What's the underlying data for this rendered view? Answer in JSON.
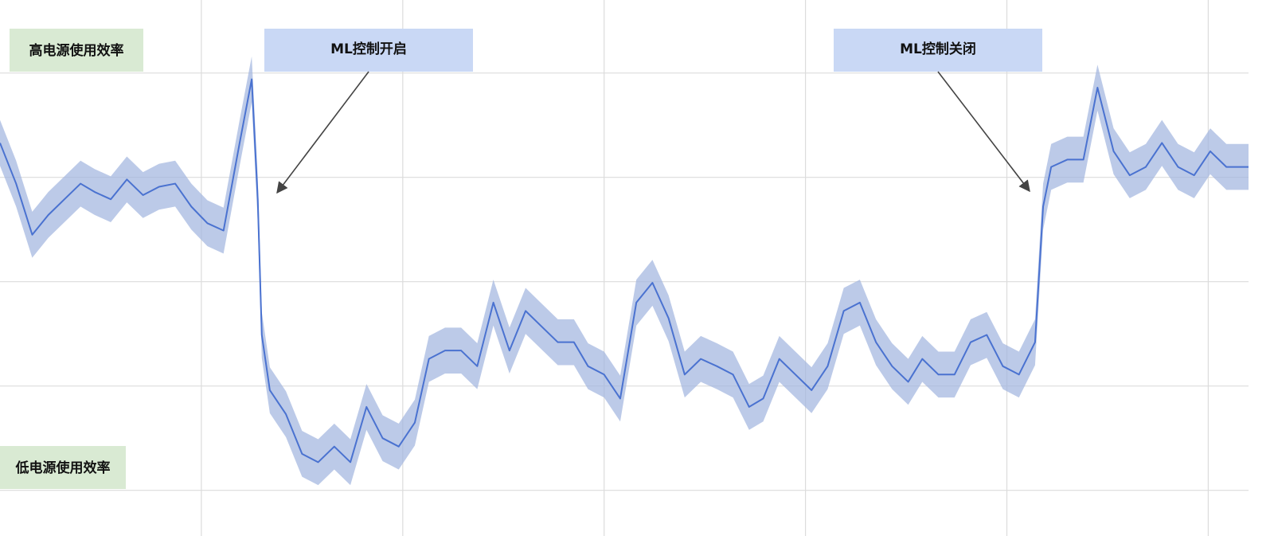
{
  "chart_data": {
    "type": "line",
    "annotations": [
      "ML控制开启",
      "ML控制关闭"
    ],
    "labels": {
      "high": "高电源使用效率",
      "low": "低电源使用效率"
    },
    "x": [
      0,
      0.08,
      0.16,
      0.24,
      0.32,
      0.4,
      0.47,
      0.55,
      0.63,
      0.71,
      0.79,
      0.87,
      0.95,
      1.03,
      1.11,
      1.19,
      1.25,
      1.28,
      1.3,
      1.34,
      1.42,
      1.5,
      1.58,
      1.66,
      1.74,
      1.82,
      1.9,
      1.98,
      2.06,
      2.13,
      2.21,
      2.29,
      2.37,
      2.45,
      2.53,
      2.61,
      2.69,
      2.77,
      2.85,
      2.92,
      3.0,
      3.08,
      3.16,
      3.24,
      3.32,
      3.4,
      3.48,
      3.56,
      3.64,
      3.72,
      3.79,
      3.87,
      3.95,
      4.03,
      4.11,
      4.19,
      4.27,
      4.35,
      4.43,
      4.51,
      4.58,
      4.66,
      4.74,
      4.82,
      4.9,
      4.98,
      5.06,
      5.14,
      5.18,
      5.22,
      5.3,
      5.38,
      5.45,
      5.53,
      5.61,
      5.69,
      5.77,
      5.85,
      5.93,
      6.01,
      6.09,
      6.2
    ],
    "series": [
      {
        "color": "#4a72d0",
        "band_color": "#9fb3de",
        "error": 0.22,
        "values": [
          3.33,
          2.94,
          2.45,
          2.64,
          2.79,
          2.94,
          2.86,
          2.79,
          2.98,
          2.83,
          2.91,
          2.94,
          2.72,
          2.56,
          2.49,
          3.33,
          3.94,
          2.79,
          1.49,
          0.96,
          0.73,
          0.35,
          0.27,
          0.42,
          0.27,
          0.8,
          0.5,
          0.42,
          0.65,
          1.26,
          1.34,
          1.34,
          1.19,
          1.8,
          1.34,
          1.72,
          1.57,
          1.42,
          1.42,
          1.19,
          1.11,
          0.88,
          1.8,
          1.99,
          1.65,
          1.11,
          1.26,
          1.19,
          1.11,
          0.8,
          0.88,
          1.26,
          1.11,
          0.96,
          1.19,
          1.72,
          1.8,
          1.42,
          1.19,
          1.04,
          1.26,
          1.11,
          1.11,
          1.42,
          1.49,
          1.19,
          1.11,
          1.42,
          2.72,
          3.1,
          3.17,
          3.17,
          3.86,
          3.25,
          3.02,
          3.1,
          3.33,
          3.1,
          3.02,
          3.25,
          3.1,
          3.1
        ]
      }
    ],
    "xlim": [
      0,
      6.2
    ],
    "xticks": [
      1,
      2,
      3,
      4,
      5,
      6
    ],
    "ylim": [
      -0.3,
      4.7
    ],
    "yticks": [
      0,
      1,
      2,
      3,
      4
    ],
    "grid": true
  }
}
